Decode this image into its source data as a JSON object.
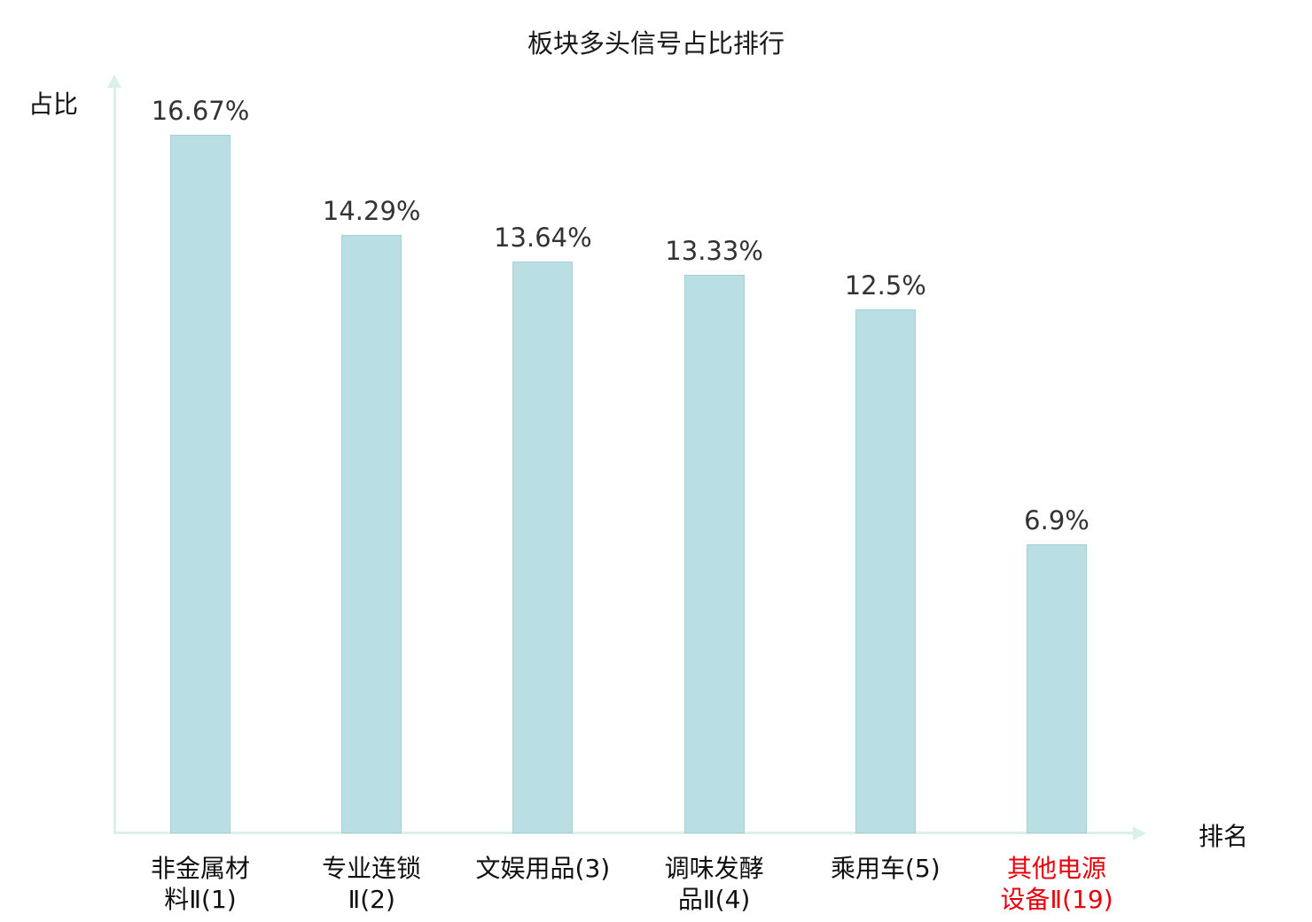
{
  "chart_data": {
    "type": "bar",
    "title": "板块多头信号占比排行",
    "xlabel": "排名",
    "ylabel": "占比",
    "categories": [
      "非金属材\n料Ⅱ(1)",
      "专业连锁\nⅡ(2)",
      "文娱用品(3)",
      "调味发酵\n品Ⅱ(4)",
      "乘用车(5)",
      "其他电源\n设备Ⅱ(19)"
    ],
    "values": [
      16.67,
      14.29,
      13.64,
      13.33,
      12.5,
      6.9
    ],
    "value_labels": [
      "16.67%",
      "14.29%",
      "13.64%",
      "13.33%",
      "12.5%",
      "6.9%"
    ],
    "highlight_index": 5,
    "ylim": [
      0,
      17.8
    ],
    "grid": false,
    "legend": "none",
    "colors": {
      "bar_fill": "#b9dee3",
      "bar_border": "#a6cfd6",
      "axis": "#daf1ea",
      "value_label_text": "#333333",
      "category_text": "#111111",
      "highlight_category_text": "#e8000b",
      "title_text": "#1a1a1a"
    }
  }
}
